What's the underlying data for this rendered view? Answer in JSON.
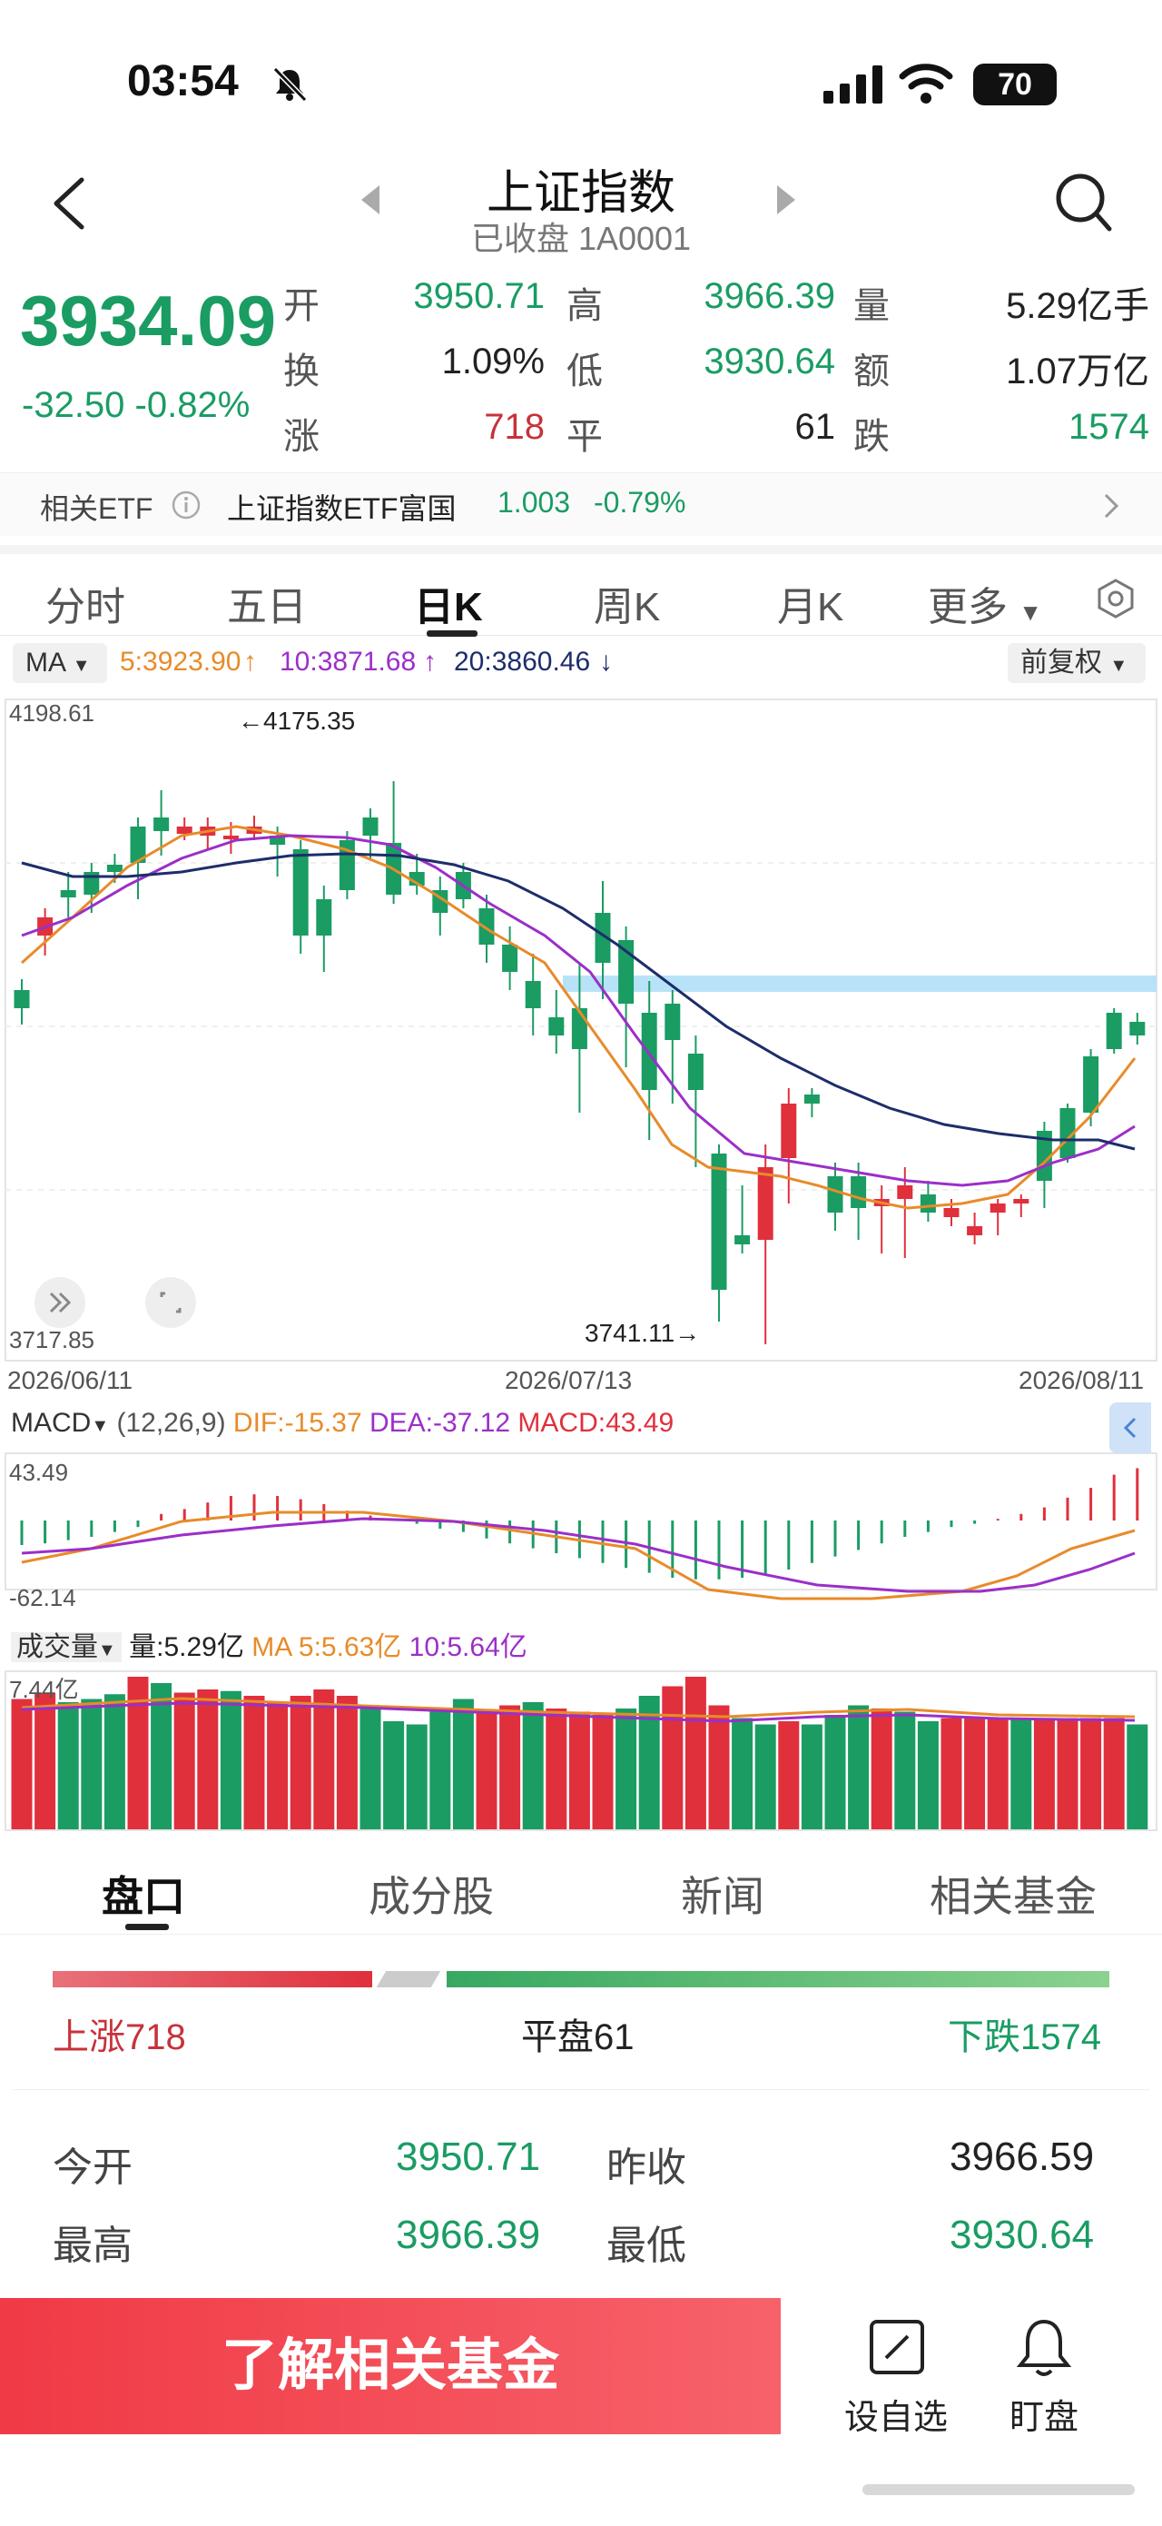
{
  "status": {
    "time": "03:54",
    "battery": "70"
  },
  "nav": {
    "title": "上证指数",
    "subtitle": "已收盘 1A0001"
  },
  "quote": {
    "price": "3934.09",
    "change": "-32.50",
    "change_pct": "-0.82%",
    "rows": [
      [
        {
          "label": "开",
          "value": "3950.71",
          "color": "green"
        },
        {
          "label": "高",
          "value": "3966.39",
          "color": "green"
        },
        {
          "label": "量",
          "value": "5.29亿手",
          "color": "black"
        }
      ],
      [
        {
          "label": "换",
          "value": "1.09%",
          "color": "black"
        },
        {
          "label": "低",
          "value": "3930.64",
          "color": "green"
        },
        {
          "label": "额",
          "value": "1.07万亿",
          "color": "black"
        }
      ],
      [
        {
          "label": "涨",
          "value": "718",
          "color": "red"
        },
        {
          "label": "平",
          "value": "61",
          "color": "black"
        },
        {
          "label": "跌",
          "value": "1574",
          "color": "green"
        }
      ]
    ]
  },
  "etf": {
    "label": "相关ETF",
    "name": "上证指数ETF富国",
    "price": "1.003",
    "pct": "-0.79%"
  },
  "tabs": [
    "分时",
    "五日",
    "日K",
    "周K",
    "月K",
    "更多"
  ],
  "ma_bar": {
    "selector": "MA",
    "ma5": "5:3923.90",
    "ma10": "10:3871.68",
    "ma20": "20:3860.46",
    "adjust": "前复权"
  },
  "kline": {
    "y_top_label": "4198.61",
    "y_bottom_label": "3717.85",
    "high_label": "4175.35",
    "low_label": "3741.11",
    "dates": [
      "2026/06/11",
      "2026/07/13",
      "2026/08/11"
    ]
  },
  "macd": {
    "selector": "MACD",
    "params": "(12,26,9)",
    "dif": "DIF:-15.37",
    "dea": "DEA:-37.12",
    "macd": "MACD:43.49",
    "top": "43.49",
    "bottom": "-62.14"
  },
  "volume": {
    "selector": "成交量",
    "vol": "量:5.29亿",
    "ma5": "MA 5:5.63亿",
    "ma10": "10:5.64亿",
    "top": "7.44亿"
  },
  "bottom_tabs": [
    "盘口",
    "成分股",
    "新闻",
    "相关基金"
  ],
  "breadth": {
    "up": "上涨718",
    "flat": "平盘61",
    "down": "下跌1574"
  },
  "detail": {
    "open_label": "今开",
    "open": "3950.71",
    "prev_label": "昨收",
    "prev": "3966.59",
    "high_label": "最高",
    "high": "3966.39",
    "low_label": "最低",
    "low": "3930.64"
  },
  "bottom_bar": {
    "cta": "了解相关基金",
    "watch": "设自选",
    "monitor": "盯盘"
  },
  "colors": {
    "up": "#e0303c",
    "down": "#1a9c63",
    "ma5": "#e88b2a",
    "ma10": "#9b2fc8",
    "ma20": "#1d2d6b"
  }
}
